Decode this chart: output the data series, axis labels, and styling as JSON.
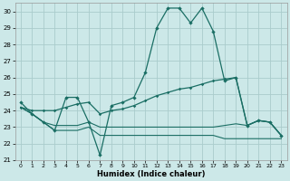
{
  "xlabel": "Humidex (Indice chaleur)",
  "background_color": "#cce8e8",
  "grid_color": "#aacccc",
  "line_color": "#1a6e64",
  "xlim": [
    -0.5,
    23.5
  ],
  "ylim": [
    21,
    30.5
  ],
  "yticks": [
    21,
    22,
    23,
    24,
    25,
    26,
    27,
    28,
    29,
    30
  ],
  "xticks": [
    0,
    1,
    2,
    3,
    4,
    5,
    6,
    7,
    8,
    9,
    10,
    11,
    12,
    13,
    14,
    15,
    16,
    17,
    18,
    19,
    20,
    21,
    22,
    23
  ],
  "line1": [
    24.5,
    23.8,
    23.3,
    22.8,
    24.8,
    24.8,
    23.3,
    21.3,
    24.3,
    24.5,
    24.8,
    26.3,
    29.0,
    30.2,
    30.2,
    29.3,
    30.2,
    28.8,
    25.8,
    26.0,
    23.1,
    23.4,
    23.3,
    22.5
  ],
  "line2": [
    24.2,
    24.0,
    24.0,
    24.0,
    24.2,
    24.4,
    24.5,
    23.8,
    24.0,
    24.1,
    24.3,
    24.6,
    24.9,
    25.1,
    25.3,
    25.4,
    25.6,
    25.8,
    25.9,
    26.0,
    23.1,
    23.4,
    23.3,
    22.5
  ],
  "line3": [
    24.2,
    23.8,
    23.3,
    22.8,
    22.8,
    22.8,
    23.0,
    22.5,
    22.5,
    22.5,
    22.5,
    22.5,
    22.5,
    22.5,
    22.5,
    22.5,
    22.5,
    22.5,
    22.3,
    22.3,
    22.3,
    22.3,
    22.3,
    22.3
  ],
  "line4": [
    24.2,
    23.8,
    23.3,
    23.1,
    23.1,
    23.1,
    23.3,
    23.0,
    23.0,
    23.0,
    23.0,
    23.0,
    23.0,
    23.0,
    23.0,
    23.0,
    23.0,
    23.0,
    23.1,
    23.2,
    23.1,
    23.4,
    23.3,
    22.5
  ]
}
